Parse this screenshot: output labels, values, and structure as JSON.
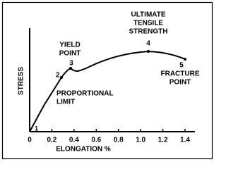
{
  "axes": {
    "y_label": "STRESS",
    "x_label": "ELONGATION %",
    "x_ticks": [
      "0",
      "0.2",
      "0.4",
      "0.6",
      "0.8",
      "1.0",
      "1.2",
      "1.4"
    ]
  },
  "points": [
    {
      "number": "1"
    },
    {
      "number": "2",
      "label": [
        "PROPORTIONAL",
        "LIMIT"
      ]
    },
    {
      "number": "3",
      "label": [
        "YIELD",
        "POINT"
      ]
    },
    {
      "number": "4",
      "label": [
        "ULTIMATE",
        "TENSILE",
        "STRENGTH"
      ]
    },
    {
      "number": "5",
      "label": [
        "FRACTURE",
        "POINT"
      ]
    }
  ]
}
